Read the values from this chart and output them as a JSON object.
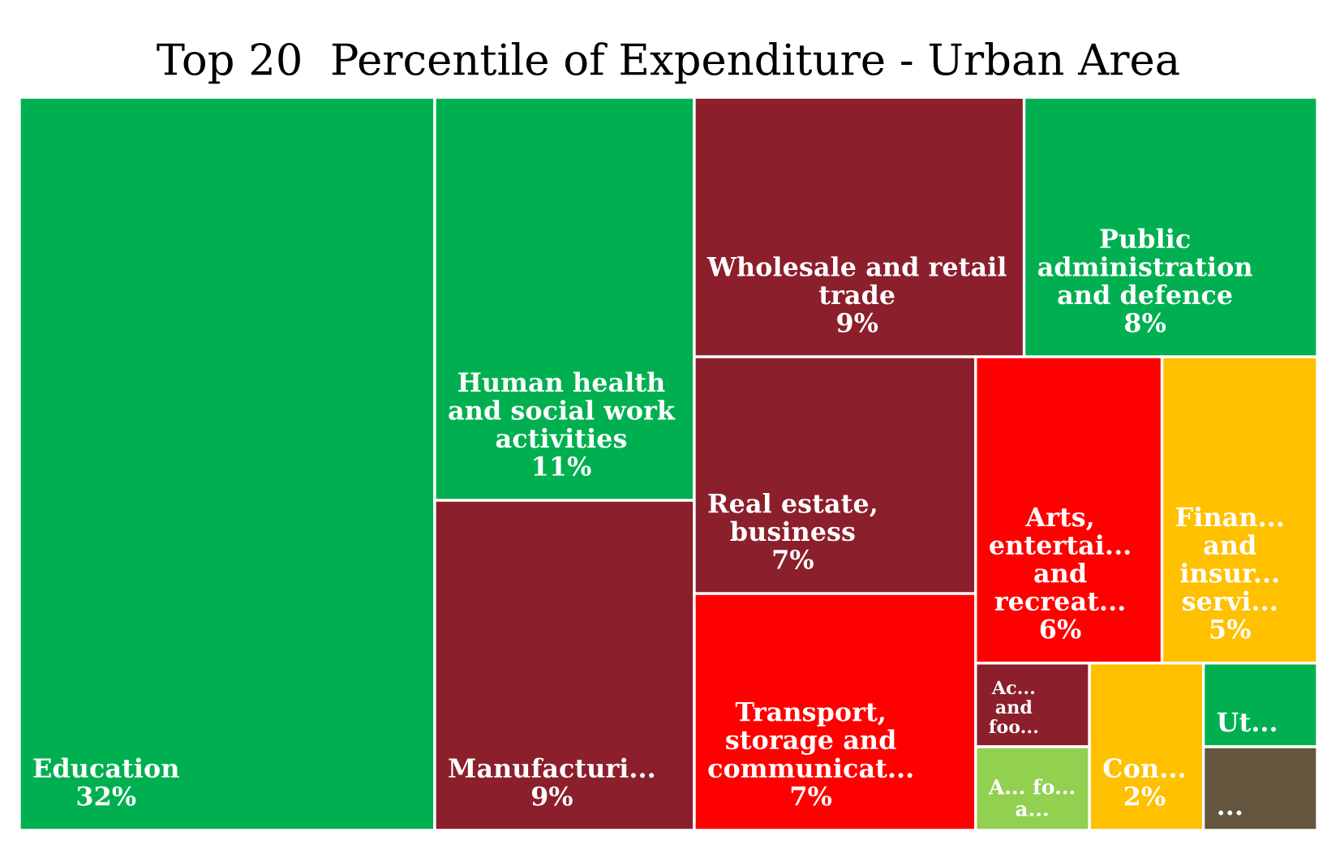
{
  "chart_data": {
    "type": "other",
    "title": "Top 20  Percentile of Expenditure - Urban Area",
    "categories": [
      "Education",
      "Human health and social work activities",
      "Manufacturi...",
      "Wholesale and retail trade",
      "Public administration and defence",
      "Real estate, business",
      "Transport, storage and communicat...",
      "Arts, entertai... and recreat...",
      "Finan... and insur... servi...",
      "Ac... and foo...",
      "A... fo... a...",
      "Con...",
      "Ut...",
      "..."
    ],
    "values": [
      32,
      11,
      9,
      9,
      8,
      7,
      7,
      6,
      5,
      null,
      null,
      2,
      null,
      null
    ],
    "value_labels": [
      "32%",
      "11%",
      "9%",
      "9%",
      "8%",
      "7%",
      "7%",
      "6%",
      "5%",
      null,
      null,
      "2%",
      null,
      null
    ],
    "colors": [
      "#00b050",
      "#00b050",
      "#8b1f2b",
      "#8b1f2b",
      "#00b050",
      "#8b1f2b",
      "#ff0000",
      "#ff0000",
      "#ffc000",
      "#8b1f2b",
      "#92d050",
      "#ffc000",
      "#00b050",
      "#63553e"
    ]
  }
}
